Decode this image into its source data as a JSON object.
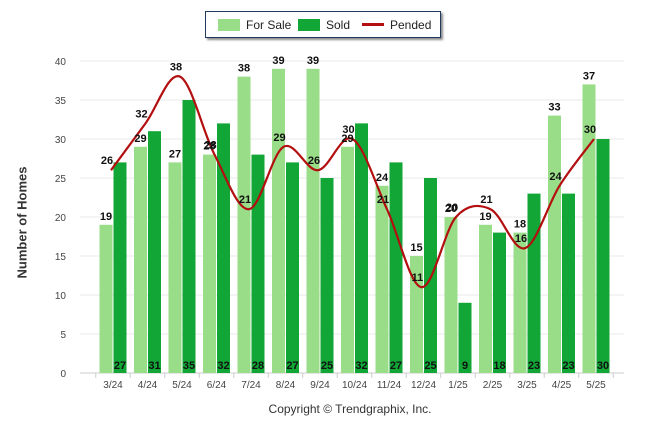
{
  "legend": {
    "for_sale": "For Sale",
    "sold": "Sold",
    "pended": "Pended"
  },
  "copyright": "Copyright © Trendgraphix, Inc.",
  "colors": {
    "for_sale": "#99dd88",
    "sold": "#11a636",
    "pended": "#b30f10",
    "grid": "#e8e8e8",
    "axis": "#cccccc"
  },
  "chart_data": {
    "type": "bar",
    "title": "",
    "xlabel": "",
    "ylabel": "Number of Homes",
    "ylim": [
      0,
      40
    ],
    "yticks": [
      0,
      5,
      10,
      15,
      20,
      25,
      30,
      35,
      40
    ],
    "grid": true,
    "legend_position": "top-center",
    "categories": [
      "3/24",
      "4/24",
      "5/24",
      "6/24",
      "7/24",
      "8/24",
      "9/24",
      "10/24",
      "11/24",
      "12/24",
      "1/25",
      "2/25",
      "3/25",
      "4/25",
      "5/25"
    ],
    "series": [
      {
        "name": "For Sale",
        "type": "bar",
        "values": [
          19,
          29,
          27,
          28,
          38,
          39,
          39,
          29,
          24,
          15,
          20,
          19,
          18,
          33,
          37
        ]
      },
      {
        "name": "Sold",
        "type": "bar",
        "values": [
          27,
          31,
          35,
          32,
          28,
          27,
          25,
          32,
          27,
          25,
          9,
          18,
          23,
          23,
          30
        ]
      },
      {
        "name": "Pended",
        "type": "line",
        "values": [
          26,
          32,
          38,
          28,
          21,
          29,
          26,
          30,
          21,
          11,
          20,
          21,
          16,
          24,
          30
        ]
      }
    ]
  }
}
